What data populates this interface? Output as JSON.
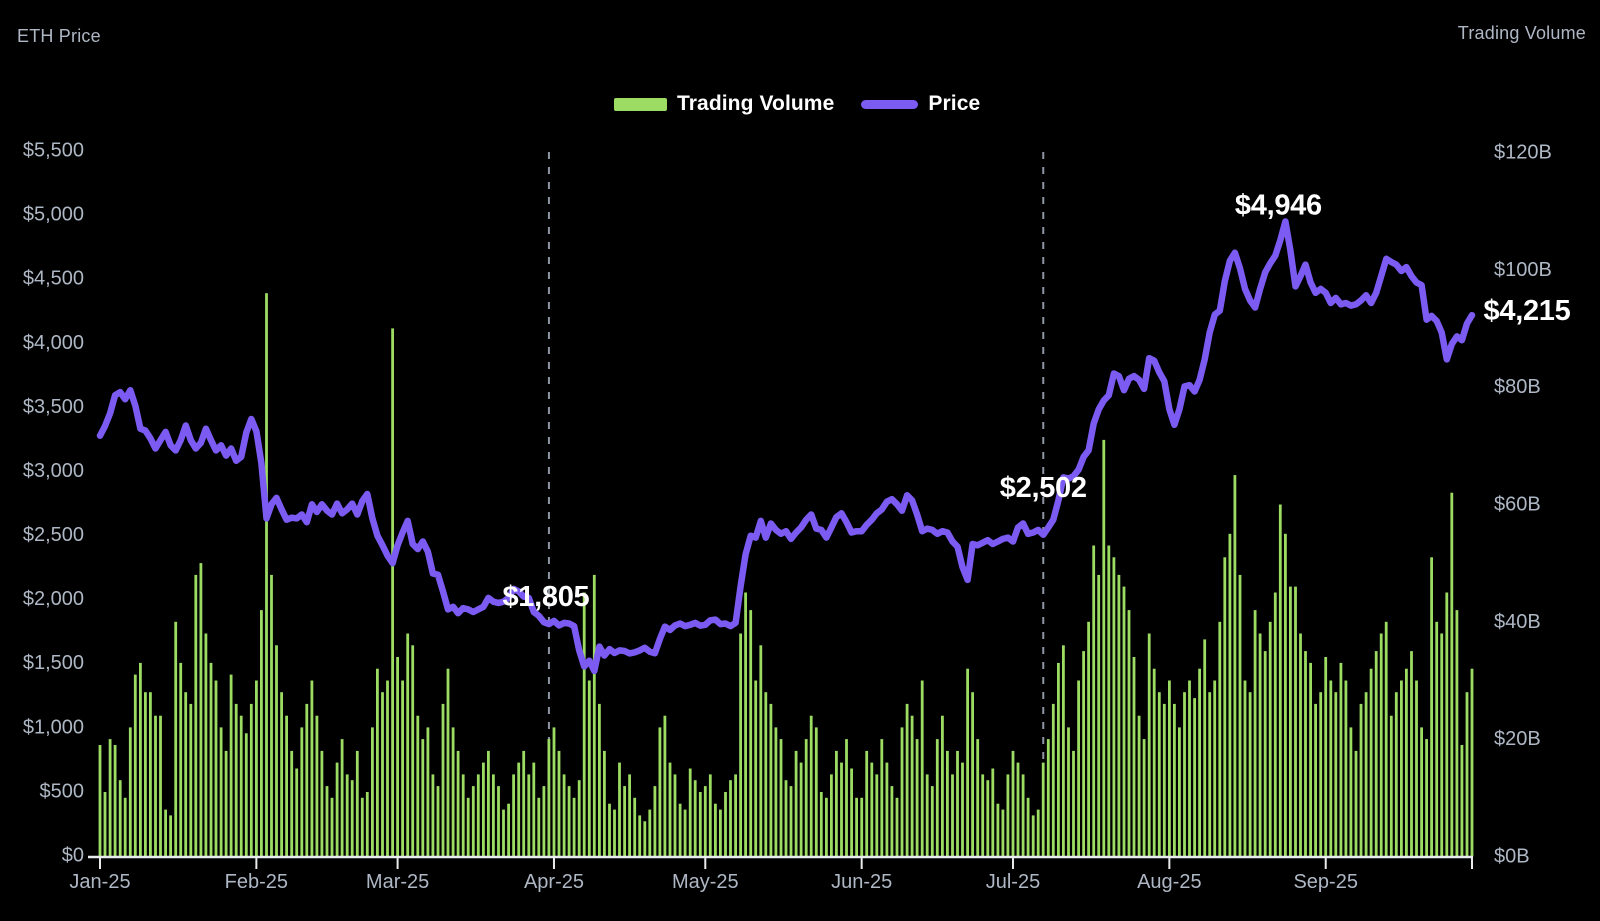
{
  "titles": {
    "left": "ETH Price",
    "right": "Trading Volume"
  },
  "legend": {
    "volume_label": "Trading Volume",
    "price_label": "Price"
  },
  "colors": {
    "background": "#000000",
    "volume_bar": "#9CDC62",
    "price_line": "#7B5BF2",
    "axis_text": "#AEB7C4",
    "axis_line": "#E9EBEF",
    "guide_line": "#8E96A4",
    "annotation_text": "#FFFFFF"
  },
  "chart_data": {
    "type": "combo",
    "title": "",
    "x": {
      "start": "2025-01-01",
      "end": "2025-09-30",
      "frequency": "daily",
      "num_points": 273,
      "tick_labels": [
        "Jan-25",
        "Feb-25",
        "Mar-25",
        "Apr-25",
        "May-25",
        "Jun-25",
        "Jul-25",
        "Aug-25",
        "Sep-25"
      ],
      "tick_day_offsets": [
        0,
        31,
        59,
        90,
        120,
        151,
        181,
        212,
        243
      ]
    },
    "left_axis": {
      "title": "ETH Price",
      "min": 0,
      "max": 5500,
      "tick_step": 500,
      "tick_labels": [
        "$5,500",
        "$5,000",
        "$4,500",
        "$4,000",
        "$3,500",
        "$3,000",
        "$2,500",
        "$2,000",
        "$1,500",
        "$1,000",
        "$500",
        "$0"
      ]
    },
    "right_axis": {
      "title": "Trading Volume",
      "min": 0,
      "max": 120,
      "tick_step": 20,
      "tick_labels": [
        "$120B",
        "$100B",
        "$80B",
        "$60B",
        "$40B",
        "$20B",
        "$0B"
      ]
    },
    "guides": {
      "dashed_vertical_day_offsets": [
        89,
        187
      ]
    },
    "annotations": [
      {
        "id": "apr-low",
        "label": "$1,805",
        "day_offset": 89,
        "value": 1805
      },
      {
        "id": "jul-breakout",
        "label": "$2,502",
        "day_offset": 187,
        "value": 2502
      },
      {
        "id": "aug-peak",
        "label": "$4,946",
        "day_offset": 235,
        "value": 4946
      },
      {
        "id": "last-price",
        "label": "$4,215",
        "day_offset": 272,
        "value": 4215
      }
    ],
    "series": [
      {
        "name": "Trading Volume",
        "type": "bar",
        "axis": "right",
        "unit": "USD billions",
        "values": [
          19,
          11,
          20,
          19,
          13,
          10,
          22,
          31,
          33,
          28,
          28,
          24,
          24,
          8,
          7,
          40,
          33,
          28,
          26,
          48,
          50,
          38,
          33,
          30,
          22,
          18,
          31,
          26,
          24,
          21,
          26,
          30,
          42,
          96,
          48,
          36,
          28,
          24,
          18,
          15,
          22,
          26,
          30,
          24,
          18,
          12,
          10,
          16,
          20,
          14,
          13,
          18,
          10,
          11,
          22,
          32,
          28,
          30,
          90,
          34,
          30,
          38,
          36,
          24,
          20,
          22,
          14,
          12,
          26,
          32,
          22,
          18,
          14,
          10,
          12,
          14,
          16,
          18,
          14,
          12,
          8,
          9,
          14,
          16,
          18,
          14,
          16,
          10,
          12,
          20,
          22,
          18,
          14,
          12,
          10,
          13,
          45,
          30,
          48,
          26,
          18,
          9,
          8,
          16,
          12,
          14,
          10,
          7,
          6,
          8,
          12,
          22,
          24,
          16,
          14,
          9,
          8,
          15,
          13,
          11,
          12,
          14,
          9,
          8,
          11,
          13,
          14,
          38,
          45,
          42,
          30,
          36,
          28,
          26,
          22,
          20,
          13,
          12,
          18,
          16,
          20,
          24,
          22,
          11,
          10,
          14,
          18,
          16,
          20,
          15,
          10,
          10,
          18,
          16,
          14,
          20,
          16,
          12,
          10,
          22,
          26,
          24,
          20,
          30,
          14,
          12,
          20,
          24,
          18,
          14,
          18,
          16,
          32,
          28,
          20,
          14,
          13,
          15,
          9,
          8,
          14,
          18,
          16,
          14,
          10,
          7,
          8,
          16,
          20,
          26,
          33,
          36,
          22,
          18,
          30,
          35,
          40,
          53,
          48,
          71,
          53,
          51,
          48,
          46,
          42,
          34,
          24,
          20,
          38,
          32,
          28,
          26,
          30,
          26,
          22,
          28,
          30,
          27,
          32,
          37,
          28,
          30,
          40,
          51,
          55,
          65,
          48,
          30,
          28,
          42,
          38,
          35,
          40,
          45,
          60,
          55,
          46,
          46,
          38,
          35,
          33,
          26,
          28,
          34,
          30,
          28,
          33,
          30,
          22,
          18,
          26,
          28,
          32,
          35,
          38,
          40,
          24,
          28,
          30,
          32,
          35,
          30,
          22,
          20,
          51,
          40,
          38,
          45,
          62,
          42,
          19,
          28,
          32
        ]
      },
      {
        "name": "Price",
        "type": "line",
        "axis": "left",
        "unit": "USD",
        "values": [
          3275,
          3350,
          3450,
          3590,
          3615,
          3560,
          3630,
          3510,
          3330,
          3315,
          3255,
          3175,
          3240,
          3305,
          3200,
          3160,
          3240,
          3355,
          3240,
          3175,
          3220,
          3330,
          3240,
          3160,
          3200,
          3120,
          3175,
          3080,
          3110,
          3300,
          3405,
          3310,
          3060,
          2630,
          2740,
          2790,
          2700,
          2620,
          2635,
          2630,
          2660,
          2600,
          2740,
          2680,
          2740,
          2690,
          2660,
          2745,
          2670,
          2700,
          2745,
          2660,
          2765,
          2820,
          2630,
          2495,
          2420,
          2340,
          2280,
          2420,
          2520,
          2610,
          2430,
          2390,
          2450,
          2370,
          2200,
          2190,
          2060,
          1920,
          1940,
          1890,
          1930,
          1920,
          1900,
          1920,
          1940,
          2010,
          1980,
          1970,
          1980,
          2010,
          2080,
          2060,
          2020,
          2010,
          1900,
          1870,
          1820,
          1805,
          1830,
          1795,
          1815,
          1810,
          1790,
          1600,
          1475,
          1520,
          1440,
          1630,
          1560,
          1610,
          1580,
          1600,
          1595,
          1577,
          1585,
          1600,
          1620,
          1590,
          1578,
          1690,
          1786,
          1760,
          1795,
          1810,
          1790,
          1800,
          1815,
          1793,
          1800,
          1835,
          1840,
          1805,
          1810,
          1790,
          1815,
          2100,
          2350,
          2495,
          2480,
          2610,
          2480,
          2590,
          2540,
          2510,
          2530,
          2470,
          2520,
          2560,
          2620,
          2660,
          2550,
          2540,
          2480,
          2560,
          2640,
          2670,
          2600,
          2520,
          2530,
          2530,
          2580,
          2620,
          2670,
          2700,
          2760,
          2780,
          2740,
          2690,
          2810,
          2770,
          2660,
          2530,
          2550,
          2540,
          2510,
          2530,
          2520,
          2450,
          2410,
          2250,
          2150,
          2430,
          2420,
          2440,
          2460,
          2430,
          2450,
          2470,
          2480,
          2450,
          2560,
          2590,
          2510,
          2520,
          2540,
          2502,
          2560,
          2620,
          2770,
          2950,
          2940,
          2960,
          3010,
          3110,
          3160,
          3370,
          3480,
          3550,
          3590,
          3760,
          3740,
          3630,
          3720,
          3740,
          3710,
          3640,
          3880,
          3860,
          3770,
          3700,
          3480,
          3360,
          3480,
          3660,
          3670,
          3620,
          3710,
          3870,
          4080,
          4220,
          4250,
          4480,
          4640,
          4703,
          4580,
          4420,
          4330,
          4275,
          4420,
          4550,
          4620,
          4680,
          4800,
          4946,
          4720,
          4440,
          4520,
          4610,
          4470,
          4390,
          4420,
          4390,
          4310,
          4350,
          4300,
          4310,
          4290,
          4300,
          4330,
          4370,
          4310,
          4390,
          4520,
          4655,
          4630,
          4610,
          4560,
          4590,
          4520,
          4470,
          4450,
          4180,
          4210,
          4170,
          4080,
          3870,
          3990,
          4050,
          4020,
          4150,
          4215
        ]
      }
    ]
  }
}
